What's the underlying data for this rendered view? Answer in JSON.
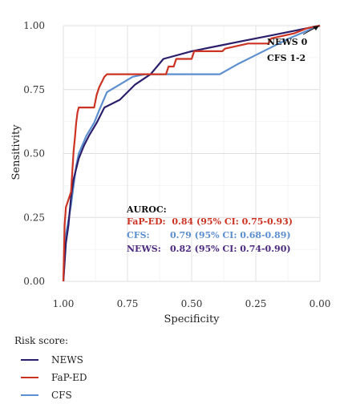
{
  "chart_data": {
    "type": "line",
    "xlabel": "Specificity",
    "ylabel": "Sensitivity",
    "x_reversed": true,
    "xlim": [
      1.0,
      0.0
    ],
    "ylim": [
      0.0,
      1.0
    ],
    "x_ticks": [
      "1.00",
      "0.75",
      "0.50",
      "0.25",
      "0.00"
    ],
    "y_ticks": [
      "0.00",
      "0.25",
      "0.50",
      "0.75",
      "1.00"
    ],
    "grid": true,
    "series": [
      {
        "name": "NEWS",
        "color": "#2b1f6b",
        "points": [
          [
            1.0,
            0.0
          ],
          [
            0.99,
            0.15
          ],
          [
            0.98,
            0.22
          ],
          [
            0.97,
            0.33
          ],
          [
            0.96,
            0.4
          ],
          [
            0.94,
            0.48
          ],
          [
            0.92,
            0.53
          ],
          [
            0.9,
            0.57
          ],
          [
            0.87,
            0.62
          ],
          [
            0.84,
            0.68
          ],
          [
            0.78,
            0.71
          ],
          [
            0.72,
            0.77
          ],
          [
            0.66,
            0.81
          ],
          [
            0.61,
            0.87
          ],
          [
            0.5,
            0.9
          ],
          [
            0.4,
            0.92
          ],
          [
            0.3,
            0.94
          ],
          [
            0.2,
            0.96
          ],
          [
            0.1,
            0.98
          ],
          [
            0.0,
            1.0
          ]
        ]
      },
      {
        "name": "FaP-ED",
        "color": "#cc3322",
        "points": [
          [
            1.0,
            0.0
          ],
          [
            0.995,
            0.22
          ],
          [
            0.99,
            0.29
          ],
          [
            0.98,
            0.32
          ],
          [
            0.97,
            0.35
          ],
          [
            0.965,
            0.43
          ],
          [
            0.96,
            0.51
          ],
          [
            0.955,
            0.56
          ],
          [
            0.95,
            0.62
          ],
          [
            0.945,
            0.66
          ],
          [
            0.94,
            0.68
          ],
          [
            0.9,
            0.68
          ],
          [
            0.88,
            0.68
          ],
          [
            0.87,
            0.73
          ],
          [
            0.86,
            0.76
          ],
          [
            0.85,
            0.78
          ],
          [
            0.84,
            0.8
          ],
          [
            0.83,
            0.81
          ],
          [
            0.8,
            0.81
          ],
          [
            0.7,
            0.81
          ],
          [
            0.6,
            0.81
          ],
          [
            0.59,
            0.84
          ],
          [
            0.57,
            0.84
          ],
          [
            0.56,
            0.87
          ],
          [
            0.5,
            0.87
          ],
          [
            0.49,
            0.9
          ],
          [
            0.38,
            0.9
          ],
          [
            0.37,
            0.91
          ],
          [
            0.28,
            0.93
          ],
          [
            0.2,
            0.93
          ],
          [
            0.19,
            0.95
          ],
          [
            0.1,
            0.97
          ],
          [
            0.05,
            0.99
          ],
          [
            0.0,
            1.0
          ]
        ]
      },
      {
        "name": "CFS",
        "color": "#5b8fd0",
        "points": [
          [
            1.0,
            0.0
          ],
          [
            0.995,
            0.08
          ],
          [
            0.99,
            0.18
          ],
          [
            0.97,
            0.3
          ],
          [
            0.95,
            0.45
          ],
          [
            0.94,
            0.5
          ],
          [
            0.91,
            0.57
          ],
          [
            0.88,
            0.62
          ],
          [
            0.86,
            0.67
          ],
          [
            0.83,
            0.74
          ],
          [
            0.78,
            0.77
          ],
          [
            0.73,
            0.8
          ],
          [
            0.68,
            0.81
          ],
          [
            0.6,
            0.81
          ],
          [
            0.5,
            0.81
          ],
          [
            0.42,
            0.81
          ],
          [
            0.39,
            0.81
          ],
          [
            0.32,
            0.85
          ],
          [
            0.26,
            0.88
          ],
          [
            0.2,
            0.91
          ],
          [
            0.12,
            0.95
          ],
          [
            0.05,
            0.98
          ],
          [
            0.0,
            1.0
          ]
        ]
      }
    ],
    "annotations": [
      {
        "text": "NEWS 0",
        "color": "#111111"
      },
      {
        "text": "CFS 1-2",
        "color": "#111111"
      }
    ],
    "auroc": {
      "title": "AUROC:",
      "lines": [
        {
          "label": "FaP-ED:",
          "value": "0.84 (95% CI: 0.75-0.93)",
          "color": "#cc3322"
        },
        {
          "label": "CFS:",
          "value": "0.79 (95% CI: 0.68-0.89)",
          "color": "#5b8fd0"
        },
        {
          "label": "NEWS:",
          "value": "0.82 (95% CI: 0.74-0.90)",
          "color": "#4b2a80"
        }
      ]
    },
    "legend": {
      "title": "Risk score:",
      "position": "bottom-left",
      "items": [
        {
          "label": "NEWS",
          "color": "#2b1f6b"
        },
        {
          "label": "FaP-ED",
          "color": "#cc3322"
        },
        {
          "label": "CFS",
          "color": "#5b8fd0"
        }
      ]
    }
  }
}
